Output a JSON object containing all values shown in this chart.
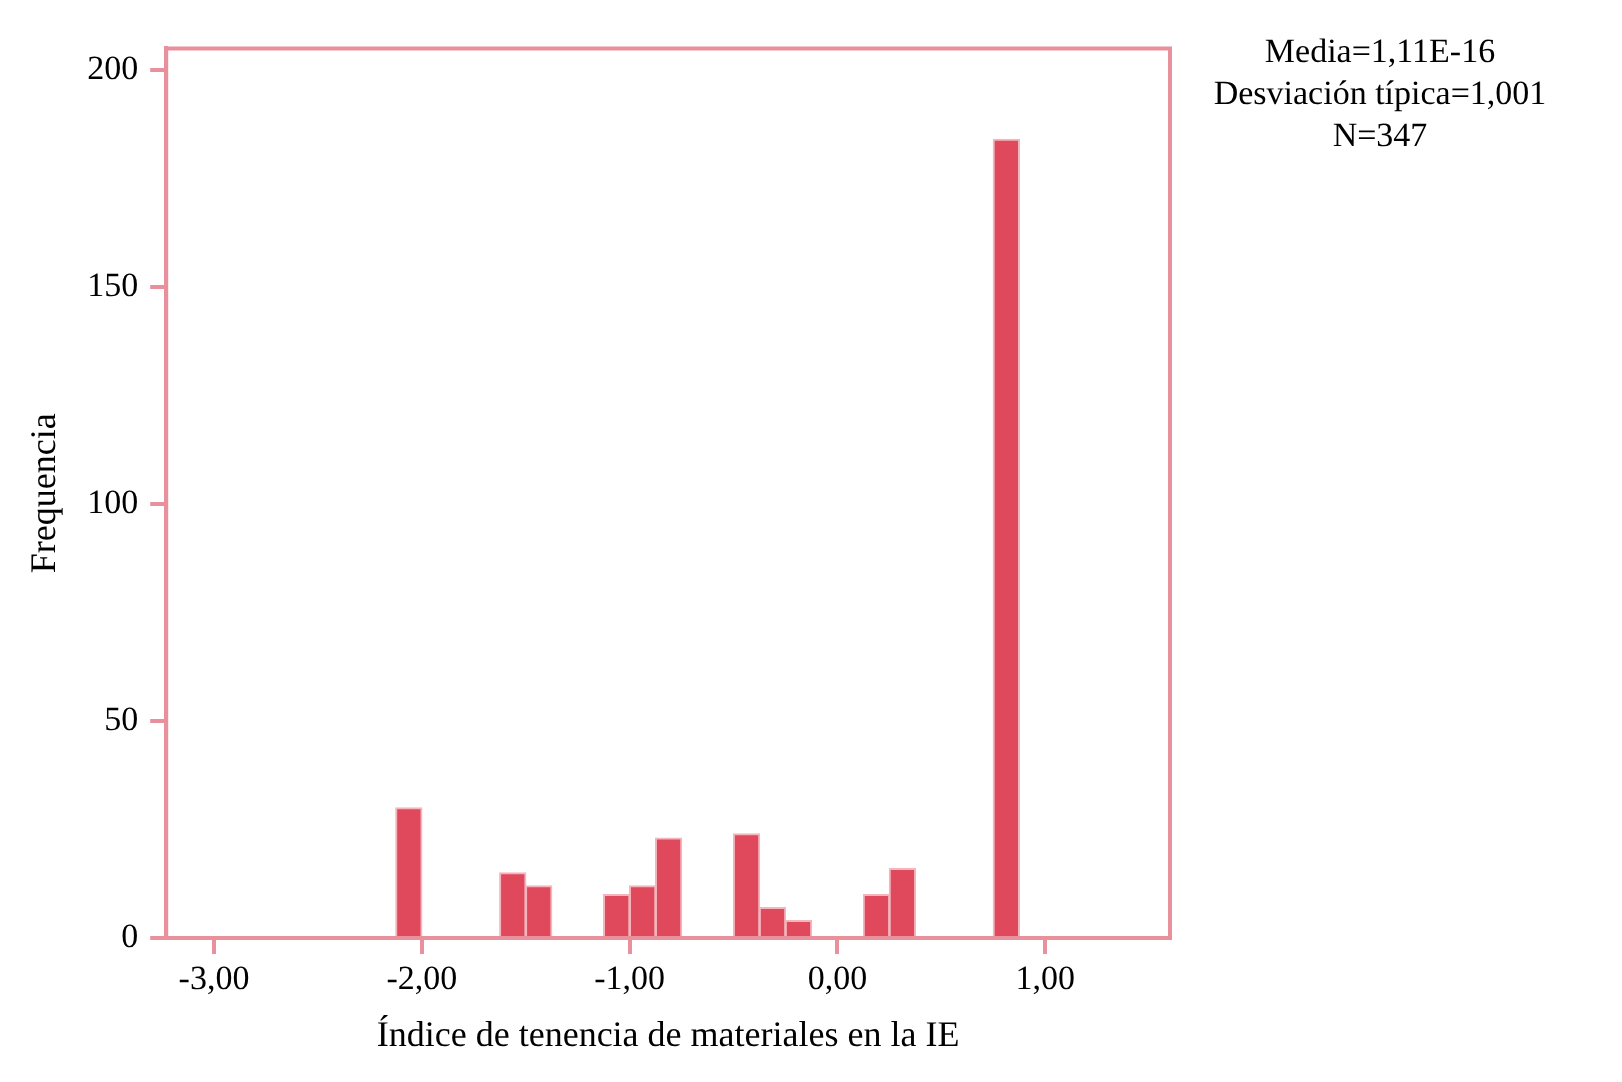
{
  "chart_data": {
    "type": "histogram",
    "xlabel": "Índice de tenencia de materiales en la IE",
    "ylabel": "Frequencia",
    "annotations": [
      "Media=1,11E-16",
      "Desviación típica=1,001",
      "N=347"
    ],
    "bins": [
      -2.125,
      -2.0,
      -1.875,
      -1.75,
      -1.625,
      -1.5,
      -1.375,
      -1.25,
      -1.125,
      -1.0,
      -0.875,
      -0.75,
      -0.625,
      -0.5,
      -0.375,
      -0.25,
      -0.125,
      0.0,
      0.125,
      0.25,
      0.375,
      0.5,
      0.625,
      0.75,
      0.875
    ],
    "values": [
      30,
      0,
      0,
      0,
      15,
      12,
      0,
      0,
      10,
      12,
      23,
      0,
      0,
      24,
      7,
      4,
      0,
      0,
      10,
      16,
      0,
      0,
      0,
      184
    ],
    "color": "#e0485c",
    "xlim": [
      -3.23,
      1.6
    ],
    "ylim": [
      0,
      205
    ],
    "xticks": [
      {
        "value": -3,
        "label": "-3,00"
      },
      {
        "value": -2,
        "label": "-2,00"
      },
      {
        "value": -1,
        "label": "-1,00"
      },
      {
        "value": 0,
        "label": "0,00"
      },
      {
        "value": 1,
        "label": "1,00"
      }
    ],
    "yticks": [
      0,
      50,
      100,
      150,
      200
    ],
    "grid": false,
    "legend": false
  }
}
